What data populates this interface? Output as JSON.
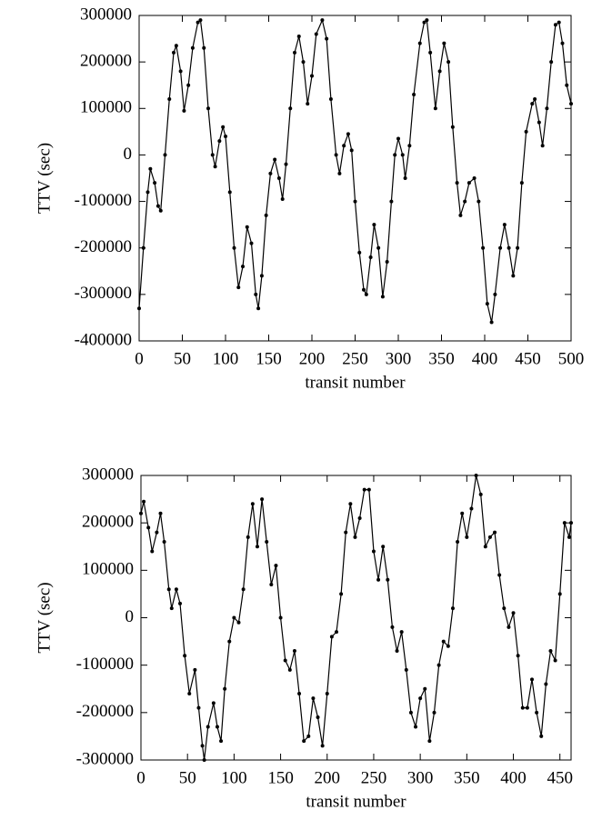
{
  "chart_data": [
    {
      "type": "line",
      "xlabel": "transit number",
      "ylabel": "TTV (sec)",
      "xlim": [
        0,
        500
      ],
      "ylim": [
        -400000,
        300000
      ],
      "xticks": [
        0,
        50,
        100,
        150,
        200,
        250,
        300,
        350,
        400,
        450,
        500
      ],
      "yticks": [
        -400000,
        -300000,
        -200000,
        -100000,
        0,
        100000,
        200000,
        300000
      ],
      "series": [
        {
          "color": "#000000",
          "x": [
            0,
            5,
            10,
            13,
            18,
            22,
            25,
            30,
            35,
            40,
            43,
            48,
            52,
            57,
            62,
            68,
            71,
            75,
            80,
            85,
            88,
            93,
            97,
            100,
            105,
            110,
            115,
            120,
            125,
            130,
            135,
            138,
            142,
            147,
            152,
            157,
            162,
            166,
            170,
            175,
            180,
            185,
            190,
            195,
            200,
            205,
            212,
            217,
            222,
            228,
            232,
            237,
            242,
            246,
            250,
            255,
            260,
            263,
            268,
            272,
            277,
            282,
            287,
            292,
            296,
            300,
            305,
            308,
            313,
            318,
            325,
            330,
            333,
            337,
            343,
            348,
            353,
            358,
            363,
            368,
            372,
            377,
            382,
            388,
            393,
            398,
            403,
            408,
            412,
            418,
            423,
            428,
            433,
            438,
            443,
            448,
            455,
            458,
            463,
            467,
            472,
            477,
            482,
            486,
            490,
            495,
            500
          ],
          "values": [
            -330000,
            -200000,
            -80000,
            -30000,
            -60000,
            -110000,
            -120000,
            0,
            120000,
            220000,
            235000,
            180000,
            95000,
            150000,
            230000,
            285000,
            290000,
            230000,
            100000,
            0,
            -25000,
            30000,
            60000,
            40000,
            -80000,
            -200000,
            -285000,
            -240000,
            -155000,
            -190000,
            -300000,
            -330000,
            -260000,
            -130000,
            -40000,
            -10000,
            -50000,
            -95000,
            -20000,
            100000,
            220000,
            255000,
            200000,
            110000,
            170000,
            260000,
            290000,
            250000,
            120000,
            0,
            -40000,
            20000,
            45000,
            10000,
            -100000,
            -210000,
            -290000,
            -300000,
            -220000,
            -150000,
            -200000,
            -305000,
            -230000,
            -100000,
            0,
            35000,
            0,
            -50000,
            20000,
            130000,
            240000,
            285000,
            290000,
            220000,
            100000,
            180000,
            240000,
            200000,
            60000,
            -60000,
            -130000,
            -100000,
            -60000,
            -50000,
            -100000,
            -200000,
            -320000,
            -360000,
            -300000,
            -200000,
            -150000,
            -200000,
            -260000,
            -200000,
            -60000,
            50000,
            110000,
            120000,
            70000,
            20000,
            100000,
            200000,
            280000,
            285000,
            240000,
            150000,
            110000
          ]
        }
      ]
    },
    {
      "type": "line",
      "xlabel": "transit number",
      "ylabel": "TTV (sec)",
      "xlim": [
        0,
        462
      ],
      "ylim": [
        -300000,
        300000
      ],
      "xticks": [
        0,
        50,
        100,
        150,
        200,
        250,
        300,
        350,
        400,
        450
      ],
      "yticks": [
        -300000,
        -200000,
        -100000,
        0,
        100000,
        200000,
        300000
      ],
      "series": [
        {
          "color": "#000000",
          "x": [
            0,
            3,
            8,
            12,
            17,
            21,
            25,
            30,
            33,
            38,
            42,
            47,
            52,
            58,
            62,
            66,
            68,
            72,
            78,
            82,
            86,
            90,
            95,
            100,
            105,
            110,
            115,
            120,
            125,
            130,
            135,
            140,
            145,
            150,
            155,
            160,
            165,
            170,
            175,
            180,
            185,
            190,
            195,
            200,
            205,
            210,
            215,
            220,
            225,
            230,
            235,
            240,
            245,
            250,
            255,
            260,
            265,
            270,
            275,
            280,
            285,
            290,
            295,
            300,
            305,
            310,
            315,
            320,
            325,
            330,
            335,
            340,
            345,
            350,
            355,
            360,
            365,
            370,
            375,
            380,
            385,
            390,
            395,
            400,
            405,
            410,
            415,
            420,
            425,
            430,
            435,
            440,
            445,
            450,
            455,
            460,
            462
          ],
          "values": [
            220000,
            245000,
            190000,
            140000,
            180000,
            220000,
            160000,
            60000,
            20000,
            60000,
            30000,
            -80000,
            -160000,
            -110000,
            -190000,
            -270000,
            -300000,
            -230000,
            -180000,
            -230000,
            -260000,
            -150000,
            -50000,
            0,
            -10000,
            60000,
            170000,
            240000,
            150000,
            250000,
            160000,
            70000,
            110000,
            0,
            -90000,
            -110000,
            -70000,
            -160000,
            -260000,
            -250000,
            -170000,
            -210000,
            -270000,
            -160000,
            -40000,
            -30000,
            50000,
            180000,
            240000,
            170000,
            210000,
            270000,
            270000,
            140000,
            80000,
            150000,
            80000,
            -20000,
            -70000,
            -30000,
            -110000,
            -200000,
            -230000,
            -170000,
            -150000,
            -260000,
            -200000,
            -100000,
            -50000,
            -60000,
            20000,
            160000,
            220000,
            170000,
            230000,
            300000,
            260000,
            150000,
            170000,
            180000,
            90000,
            20000,
            -20000,
            10000,
            -80000,
            -190000,
            -190000,
            -130000,
            -200000,
            -250000,
            -140000,
            -70000,
            -90000,
            50000,
            200000,
            170000,
            200000
          ]
        }
      ]
    }
  ]
}
